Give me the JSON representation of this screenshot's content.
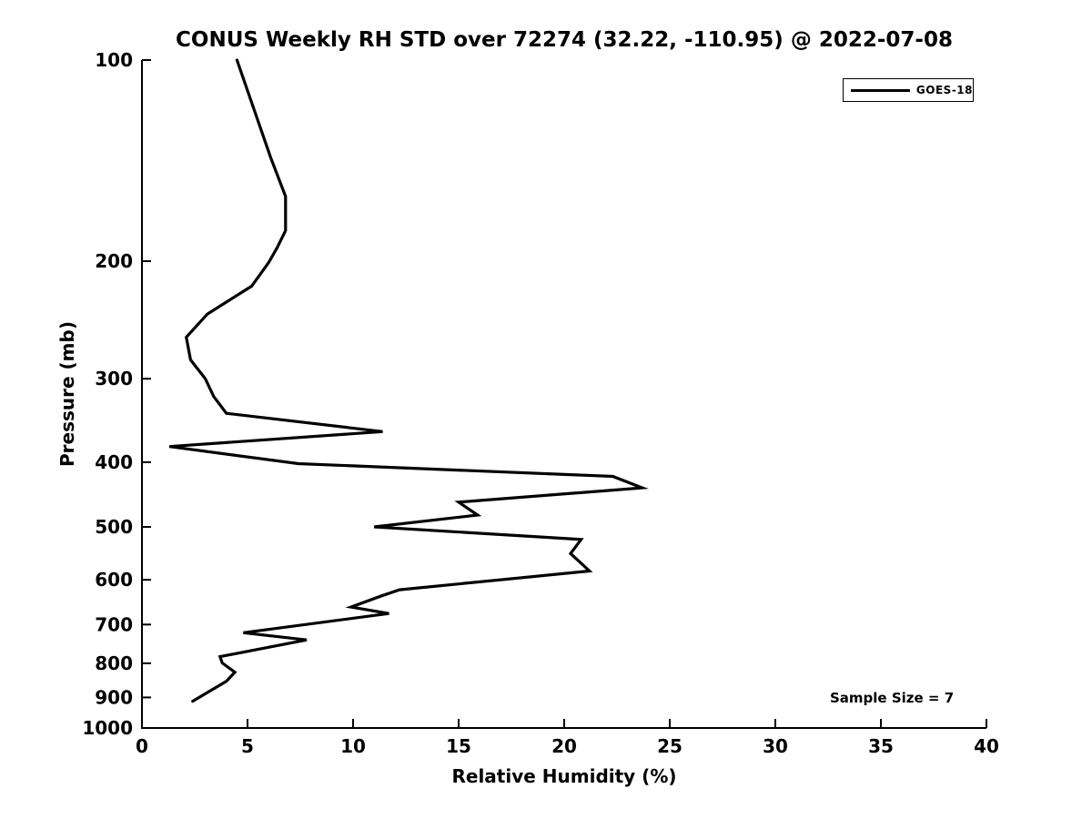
{
  "title": "CONUS Weekly RH STD over 72274 (32.22, -110.95) @ 2022-07-08",
  "legend": {
    "position": "top-right",
    "entries": [
      {
        "label": "GOES-18",
        "color": "#000000"
      }
    ]
  },
  "annotation": {
    "text": "Sample Size = 7"
  },
  "chart_data": {
    "type": "line",
    "title": "CONUS Weekly RH STD over 72274 (32.22, -110.95) @ 2022-07-08",
    "xlabel": "Relative Humidity (%)",
    "ylabel": "Pressure (mb)",
    "xlim": [
      0,
      40
    ],
    "ylim": [
      100,
      1000
    ],
    "y_scale": "log",
    "y_inverted": true,
    "grid": false,
    "x_ticks": [
      0,
      5,
      10,
      15,
      20,
      25,
      30,
      35,
      40
    ],
    "y_ticks": [
      100,
      200,
      300,
      400,
      500,
      600,
      700,
      800,
      900,
      1000
    ],
    "line_color": "#000000",
    "line_width": 3.2,
    "series": [
      {
        "name": "GOES-18",
        "color": "#000000",
        "x_rh_percent": [
          4.5,
          6.1,
          6.8,
          6.8,
          6.4,
          6.0,
          5.2,
          3.1,
          2.1,
          2.3,
          3.0,
          3.4,
          4.0,
          11.4,
          1.3,
          7.4,
          22.3,
          23.7,
          15.0,
          15.9,
          11.0,
          20.8,
          20.3,
          21.2,
          12.2,
          11.3,
          9.9,
          11.7,
          4.8,
          7.8,
          3.7,
          3.8,
          4.4,
          4.0,
          2.4
        ],
        "y_pressure_mb": [
          100,
          140,
          160,
          180,
          191,
          201,
          218,
          240,
          260,
          281,
          300,
          319,
          338,
          360,
          379,
          402,
          420,
          437,
          459,
          480,
          500,
          522,
          548,
          582,
          621,
          635,
          659,
          674,
          720,
          738,
          782,
          799,
          825,
          851,
          912
        ]
      }
    ],
    "annotations": [
      {
        "text": "Sample Size = 7",
        "position": "lower-right"
      }
    ]
  }
}
